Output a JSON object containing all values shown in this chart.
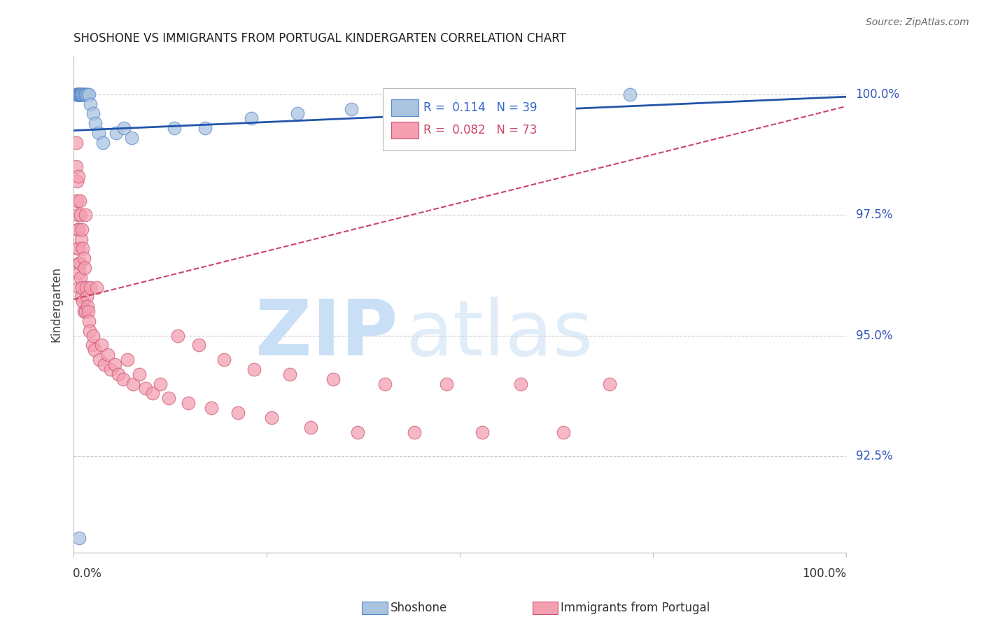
{
  "title": "SHOSHONE VS IMMIGRANTS FROM PORTUGAL KINDERGARTEN CORRELATION CHART",
  "source": "Source: ZipAtlas.com",
  "ylabel": "Kindergarten",
  "ytick_labels": [
    "100.0%",
    "97.5%",
    "95.0%",
    "92.5%"
  ],
  "ytick_values": [
    1.0,
    0.975,
    0.95,
    0.925
  ],
  "xmin": 0.0,
  "xmax": 1.0,
  "ymin": 0.905,
  "ymax": 1.008,
  "background_color": "#ffffff",
  "grid_color": "#cccccc",
  "shoshone_color": "#aac4e0",
  "shoshone_edge_color": "#5588cc",
  "portugal_color": "#f4a0b0",
  "portugal_edge_color": "#cc5577",
  "trend_blue_color": "#2255aa",
  "trend_pink_color": "#cc4466",
  "legend_R1": "0.114",
  "legend_N1": "39",
  "legend_R2": "0.082",
  "legend_N2": "73",
  "blue_trend_x": [
    0.0,
    1.0
  ],
  "blue_trend_y": [
    0.9925,
    0.9995
  ],
  "pink_trend_x": [
    0.0,
    1.0
  ],
  "pink_trend_y": [
    0.9575,
    0.9975
  ],
  "shoshone_x": [
    0.003,
    0.004,
    0.005,
    0.005,
    0.006,
    0.006,
    0.006,
    0.007,
    0.007,
    0.008,
    0.008,
    0.009,
    0.009,
    0.01,
    0.01,
    0.011,
    0.012,
    0.013,
    0.014,
    0.015,
    0.016,
    0.018,
    0.02,
    0.022,
    0.025,
    0.028,
    0.032,
    0.038,
    0.055,
    0.065,
    0.075,
    0.13,
    0.17,
    0.23,
    0.29,
    0.36,
    0.6,
    0.72,
    0.007
  ],
  "shoshone_y": [
    1.0,
    1.0,
    1.0,
    1.0,
    1.0,
    1.0,
    1.0,
    1.0,
    1.0,
    1.0,
    1.0,
    1.0,
    1.0,
    1.0,
    1.0,
    1.0,
    1.0,
    1.0,
    1.0,
    1.0,
    1.0,
    1.0,
    1.0,
    0.998,
    0.996,
    0.994,
    0.992,
    0.99,
    0.992,
    0.993,
    0.991,
    0.993,
    0.993,
    0.995,
    0.996,
    0.997,
    0.999,
    1.0,
    0.908
  ],
  "portugal_x": [
    0.003,
    0.003,
    0.004,
    0.004,
    0.005,
    0.005,
    0.005,
    0.006,
    0.006,
    0.006,
    0.007,
    0.007,
    0.007,
    0.008,
    0.008,
    0.009,
    0.009,
    0.01,
    0.01,
    0.011,
    0.011,
    0.012,
    0.012,
    0.013,
    0.013,
    0.014,
    0.015,
    0.015,
    0.016,
    0.017,
    0.018,
    0.019,
    0.02,
    0.021,
    0.022,
    0.024,
    0.025,
    0.027,
    0.03,
    0.033,
    0.036,
    0.04,
    0.044,
    0.048,
    0.053,
    0.058,
    0.064,
    0.07,
    0.077,
    0.085,
    0.093,
    0.102,
    0.112,
    0.123,
    0.135,
    0.148,
    0.162,
    0.178,
    0.195,
    0.213,
    0.234,
    0.256,
    0.28,
    0.307,
    0.336,
    0.368,
    0.403,
    0.441,
    0.483,
    0.529,
    0.579,
    0.634,
    0.694
  ],
  "portugal_y": [
    0.99,
    0.985,
    0.982,
    0.978,
    0.975,
    0.972,
    0.968,
    0.983,
    0.972,
    0.968,
    0.965,
    0.963,
    0.96,
    0.978,
    0.965,
    0.975,
    0.962,
    0.97,
    0.958,
    0.972,
    0.96,
    0.968,
    0.957,
    0.966,
    0.955,
    0.964,
    0.975,
    0.955,
    0.96,
    0.958,
    0.956,
    0.955,
    0.953,
    0.951,
    0.96,
    0.948,
    0.95,
    0.947,
    0.96,
    0.945,
    0.948,
    0.944,
    0.946,
    0.943,
    0.944,
    0.942,
    0.941,
    0.945,
    0.94,
    0.942,
    0.939,
    0.938,
    0.94,
    0.937,
    0.95,
    0.936,
    0.948,
    0.935,
    0.945,
    0.934,
    0.943,
    0.933,
    0.942,
    0.931,
    0.941,
    0.93,
    0.94,
    0.93,
    0.94,
    0.93,
    0.94,
    0.93,
    0.94
  ]
}
